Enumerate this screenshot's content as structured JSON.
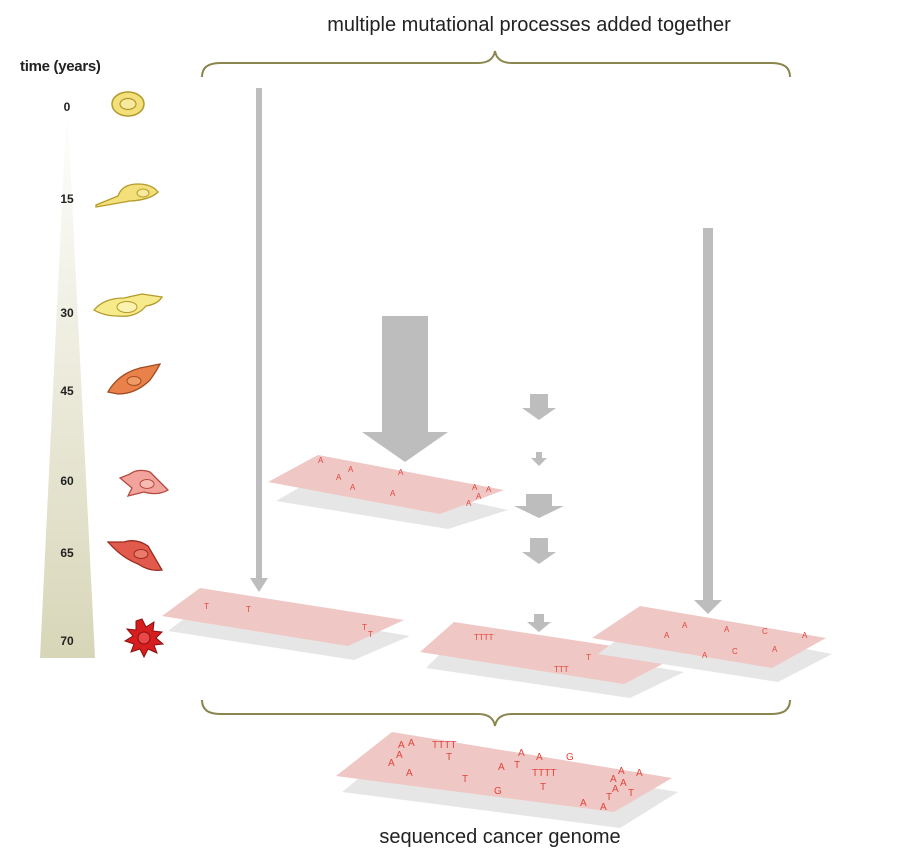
{
  "title_top": "multiple mutational processes added together",
  "title_bottom": "sequenced cancer genome",
  "time_axis": {
    "label": "time (years)",
    "ticks": [
      "0",
      "15",
      "30",
      "45",
      "60",
      "65",
      "70"
    ]
  },
  "cell_icons": [
    "normal-cell-icon",
    "elongated-cell-icon",
    "elongated-cell-icon",
    "orange-cell-icon",
    "pink-cell-icon",
    "red-cell-icon",
    "cancer-cell-icon"
  ],
  "genome_strips": {
    "strip_a": [
      "A",
      "A",
      "A",
      "A",
      "A",
      "A",
      "A",
      "A",
      "A",
      "A"
    ],
    "strip_b": [
      "T",
      "T",
      "T",
      "T"
    ],
    "strip_c": [
      "TTTT",
      "T",
      "TTT"
    ],
    "strip_d": [
      "A",
      "A",
      "A",
      "C",
      "A",
      "A",
      "C",
      "A"
    ],
    "cancer_genome": [
      "A",
      "A",
      "TTTT",
      "A",
      "A",
      "G",
      "A",
      "A",
      "T",
      "A",
      "T",
      "TTTT",
      "A",
      "T",
      "A",
      "A",
      "T",
      "G",
      "A",
      "A",
      "T",
      "T",
      "A",
      "A",
      "A"
    ]
  },
  "colors": {
    "strip_fill": "#efc7c4",
    "mutation_text": "#e3453c",
    "arrow": "#bdbdbd",
    "brace": "#8b8550",
    "timeline_top": "#ffffff",
    "timeline_bottom": "#d8d6b8"
  }
}
